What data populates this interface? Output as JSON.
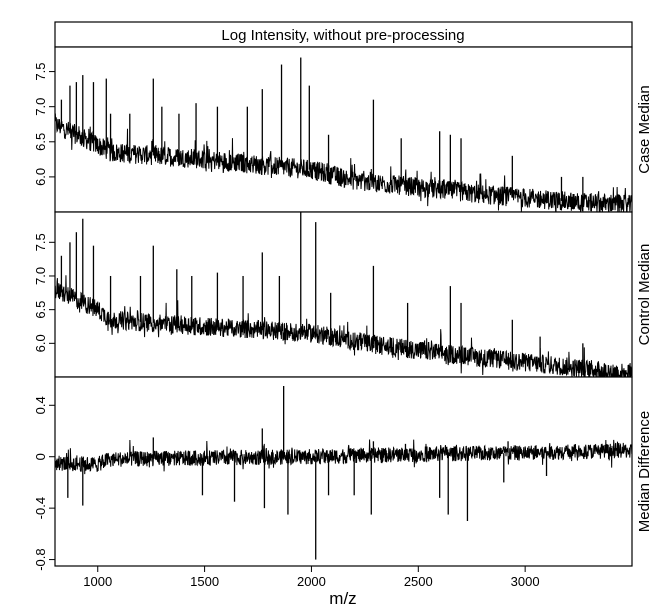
{
  "chart_data": {
    "type": "line",
    "title": "Log Intensity, without pre-processing",
    "xlabel": "m/z",
    "xlim": [
      800,
      3500
    ],
    "x_ticks": [
      "1000",
      "1500",
      "2000",
      "2500",
      "3000"
    ],
    "x_tick_values": [
      1000,
      1500,
      2000,
      2500,
      3000
    ],
    "line_color": "#000000",
    "panels": [
      {
        "name": "Case Median",
        "ylim": [
          5.5,
          7.85
        ],
        "y_ticks": [
          "6.0",
          "6.5",
          "7.0",
          "7.5"
        ],
        "y_tick_values": [
          6.0,
          6.5,
          7.0,
          7.5
        ],
        "baseline": [
          [
            800,
            6.75
          ],
          [
            1000,
            6.45
          ],
          [
            1060,
            6.35
          ],
          [
            1500,
            6.25
          ],
          [
            2000,
            6.1
          ],
          [
            2200,
            5.95
          ],
          [
            2500,
            5.85
          ],
          [
            2800,
            5.75
          ],
          [
            3200,
            5.65
          ],
          [
            3500,
            5.6
          ]
        ],
        "noise": 0.14,
        "peaks": [
          [
            830,
            7.1
          ],
          [
            870,
            7.3
          ],
          [
            900,
            7.35
          ],
          [
            930,
            7.45
          ],
          [
            980,
            7.35
          ],
          [
            1040,
            7.4
          ],
          [
            1060,
            6.9
          ],
          [
            1150,
            6.9
          ],
          [
            1260,
            7.4
          ],
          [
            1300,
            7.0
          ],
          [
            1380,
            6.9
          ],
          [
            1460,
            7.05
          ],
          [
            1560,
            7.0
          ],
          [
            1700,
            7.0
          ],
          [
            1770,
            7.25
          ],
          [
            1860,
            7.6
          ],
          [
            1950,
            7.7
          ],
          [
            1990,
            7.3
          ],
          [
            2080,
            6.6
          ],
          [
            2290,
            7.1
          ],
          [
            2420,
            6.55
          ],
          [
            2600,
            6.65
          ],
          [
            2650,
            6.6
          ],
          [
            2700,
            6.55
          ],
          [
            2940,
            6.3
          ],
          [
            3170,
            6.0
          ],
          [
            3270,
            6.0
          ]
        ]
      },
      {
        "name": "Control Median",
        "ylim": [
          5.5,
          7.95
        ],
        "y_ticks": [
          "6.0",
          "6.5",
          "7.0",
          "7.5"
        ],
        "y_tick_values": [
          6.0,
          6.5,
          7.0,
          7.5
        ],
        "baseline": [
          [
            800,
            6.8
          ],
          [
            1000,
            6.5
          ],
          [
            1060,
            6.35
          ],
          [
            1500,
            6.25
          ],
          [
            2000,
            6.15
          ],
          [
            2300,
            5.98
          ],
          [
            2500,
            5.9
          ],
          [
            2750,
            5.8
          ],
          [
            3200,
            5.65
          ],
          [
            3500,
            5.55
          ]
        ],
        "noise": 0.14,
        "peaks": [
          [
            830,
            7.3
          ],
          [
            870,
            7.5
          ],
          [
            900,
            7.65
          ],
          [
            930,
            7.85
          ],
          [
            980,
            7.45
          ],
          [
            1060,
            7.0
          ],
          [
            1200,
            7.0
          ],
          [
            1260,
            7.45
          ],
          [
            1370,
            7.1
          ],
          [
            1440,
            7.0
          ],
          [
            1560,
            7.05
          ],
          [
            1680,
            7.0
          ],
          [
            1770,
            7.35
          ],
          [
            1850,
            7.0
          ],
          [
            1950,
            7.95
          ],
          [
            2020,
            7.8
          ],
          [
            2090,
            6.75
          ],
          [
            2290,
            7.15
          ],
          [
            2450,
            6.6
          ],
          [
            2650,
            6.85
          ],
          [
            2700,
            6.6
          ],
          [
            2940,
            6.35
          ],
          [
            3070,
            6.1
          ],
          [
            3270,
            6.0
          ]
        ]
      },
      {
        "name": "Median Difference",
        "ylim": [
          -0.85,
          0.62
        ],
        "y_ticks": [
          "-0.8",
          "-0.4",
          "0",
          "0.4"
        ],
        "y_tick_values": [
          -0.8,
          -0.4,
          0,
          0.4
        ],
        "baseline": [
          [
            800,
            -0.05
          ],
          [
            1000,
            -0.06
          ],
          [
            1050,
            -0.02
          ],
          [
            1500,
            -0.01
          ],
          [
            2000,
            0.0
          ],
          [
            2500,
            0.02
          ],
          [
            3000,
            0.03
          ],
          [
            3500,
            0.05
          ]
        ],
        "noise": 0.06,
        "peaks": [
          [
            1870,
            0.55
          ],
          [
            1770,
            0.22
          ],
          [
            1260,
            0.15
          ],
          [
            2290,
            0.12
          ],
          [
            2440,
            0.1
          ],
          [
            2920,
            0.12
          ],
          [
            3220,
            0.08
          ],
          [
            860,
            -0.32
          ],
          [
            930,
            -0.38
          ],
          [
            1490,
            -0.3
          ],
          [
            1640,
            -0.35
          ],
          [
            1780,
            -0.4
          ],
          [
            1890,
            -0.45
          ],
          [
            2020,
            -0.8
          ],
          [
            2080,
            -0.3
          ],
          [
            2200,
            -0.3
          ],
          [
            2280,
            -0.45
          ],
          [
            2600,
            -0.32
          ],
          [
            2640,
            -0.45
          ],
          [
            2730,
            -0.5
          ],
          [
            2900,
            -0.2
          ],
          [
            3100,
            -0.15
          ]
        ]
      }
    ]
  }
}
